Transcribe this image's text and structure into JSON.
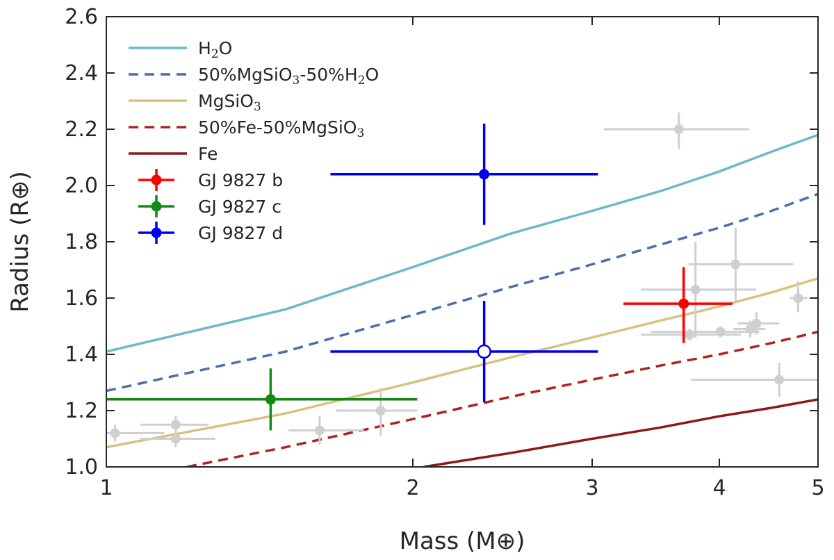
{
  "chart_data": {
    "type": "scatter",
    "title": "",
    "xlabel": "Mass (M⊕)",
    "ylabel": "Radius (R⊕)",
    "xscale": "log",
    "xlim": [
      1,
      5
    ],
    "ylim": [
      1.0,
      2.6
    ],
    "xticks": [
      1,
      2,
      3,
      4,
      5
    ],
    "yticks": [
      1.0,
      1.2,
      1.4,
      1.6,
      1.8,
      2.0,
      2.2,
      2.4,
      2.6
    ],
    "xtick_labels": [
      "1",
      "2",
      "3",
      "4",
      "5"
    ],
    "ytick_labels": [
      "1.0",
      "1.2",
      "1.4",
      "1.6",
      "1.8",
      "2.0",
      "2.2",
      "2.4",
      "2.6"
    ],
    "grid": false,
    "legend_position": "top-left",
    "composition_curves": [
      {
        "name": "H₂O",
        "color": "#6bb9cf",
        "dash": "solid",
        "x": [
          1,
          1.5,
          2,
          2.5,
          3,
          3.5,
          4,
          4.5,
          5
        ],
        "y": [
          1.41,
          1.56,
          1.71,
          1.83,
          1.91,
          1.98,
          2.05,
          2.12,
          2.18
        ]
      },
      {
        "name": "50%MgSiO₃-50%H₂O",
        "color": "#4a6fab",
        "dash": "dashed",
        "x": [
          1,
          1.5,
          2,
          2.5,
          3,
          3.5,
          4,
          4.5,
          5
        ],
        "y": [
          1.27,
          1.41,
          1.54,
          1.64,
          1.72,
          1.79,
          1.85,
          1.91,
          1.97
        ]
      },
      {
        "name": "MgSiO₃",
        "color": "#d7c27e",
        "dash": "solid",
        "x": [
          1,
          1.5,
          2,
          2.5,
          3,
          3.5,
          4,
          4.5,
          5
        ],
        "y": [
          1.07,
          1.19,
          1.3,
          1.39,
          1.46,
          1.52,
          1.57,
          1.62,
          1.67
        ]
      },
      {
        "name": "50%Fe-50%MgSiO₃",
        "color": "#b22222",
        "dash": "dashed",
        "x": [
          1.2,
          1.5,
          2,
          2.5,
          3,
          3.5,
          4,
          4.5,
          5
        ],
        "y": [
          1.0,
          1.07,
          1.17,
          1.25,
          1.31,
          1.36,
          1.4,
          1.44,
          1.48
        ]
      },
      {
        "name": "Fe",
        "color": "#8b1a1a",
        "dash": "solid",
        "x": [
          2.05,
          2.5,
          3,
          3.5,
          4,
          4.5,
          5
        ],
        "y": [
          1.0,
          1.05,
          1.1,
          1.14,
          1.18,
          1.21,
          1.24
        ]
      }
    ],
    "planets": [
      {
        "name": "GJ 9827 b",
        "color": "#ff0000",
        "x": 3.69,
        "y": 1.58,
        "xerr": [
          0.47,
          0.43
        ],
        "yerr": [
          0.14,
          0.13
        ],
        "filled": true
      },
      {
        "name": "GJ 9827 c",
        "color": "#138a13",
        "x": 1.45,
        "y": 1.24,
        "xerr": [
          0.45,
          0.57
        ],
        "yerr": [
          0.11,
          0.11
        ],
        "filled": true
      },
      {
        "name": "GJ 9827 d",
        "color": "#0000ee",
        "x": 2.35,
        "y": 2.04,
        "xerr": [
          0.69,
          0.69
        ],
        "yerr": [
          0.18,
          0.18
        ],
        "filled": true
      },
      {
        "name": "",
        "color": "#0000ee",
        "x": 2.35,
        "y": 1.41,
        "xerr": [
          0.69,
          0.69
        ],
        "yerr": [
          0.18,
          0.18
        ],
        "filled": false
      }
    ],
    "other_planets": {
      "color": "#cfcfcf",
      "points": [
        {
          "x": 1.02,
          "y": 1.12,
          "xerr": [
            0.04,
            0.12
          ],
          "yerr": [
            0.03,
            0.03
          ]
        },
        {
          "x": 1.17,
          "y": 1.15,
          "xerr": [
            0.09,
            0.09
          ],
          "yerr": [
            0.03,
            0.03
          ]
        },
        {
          "x": 1.17,
          "y": 1.1,
          "xerr": [
            0.09,
            0.11
          ],
          "yerr": [
            0.03,
            0.03
          ]
        },
        {
          "x": 1.62,
          "y": 1.13,
          "xerr": [
            0.11,
            0.17
          ],
          "yerr": [
            0.05,
            0.05
          ]
        },
        {
          "x": 1.86,
          "y": 1.2,
          "xerr": [
            0.18,
            0.16
          ],
          "yerr": [
            0.09,
            0.08
          ]
        },
        {
          "x": 3.65,
          "y": 2.2,
          "xerr": [
            0.57,
            0.63
          ],
          "yerr": [
            0.07,
            0.06
          ]
        },
        {
          "x": 3.79,
          "y": 1.63,
          "xerr": [
            0.44,
            0.56
          ],
          "yerr": [
            0.17,
            0.17
          ]
        },
        {
          "x": 4.15,
          "y": 1.72,
          "xerr": [
            0.42,
            0.58
          ],
          "yerr": [
            0.13,
            0.13
          ]
        },
        {
          "x": 3.74,
          "y": 1.47,
          "xerr": [
            0.39,
            0.46
          ],
          "yerr": [
            0.02,
            0.02
          ]
        },
        {
          "x": 4.01,
          "y": 1.48,
          "xerr": [
            0.58,
            0.37
          ],
          "yerr": [
            0.02,
            0.02
          ]
        },
        {
          "x": 4.35,
          "y": 1.51,
          "xerr": [
            0.18,
            0.23
          ],
          "yerr": [
            0.04,
            0.04
          ]
        },
        {
          "x": 4.29,
          "y": 1.49,
          "xerr": [
            0.16,
            0.15
          ],
          "yerr": [
            0.03,
            0.03
          ]
        },
        {
          "x": 4.78,
          "y": 1.6,
          "xerr": [
            0.09,
            0.1
          ],
          "yerr": [
            0.05,
            0.06
          ]
        },
        {
          "x": 4.58,
          "y": 1.31,
          "xerr": [
            0.83,
            0.47
          ],
          "yerr": [
            0.06,
            0.06
          ]
        }
      ]
    }
  }
}
